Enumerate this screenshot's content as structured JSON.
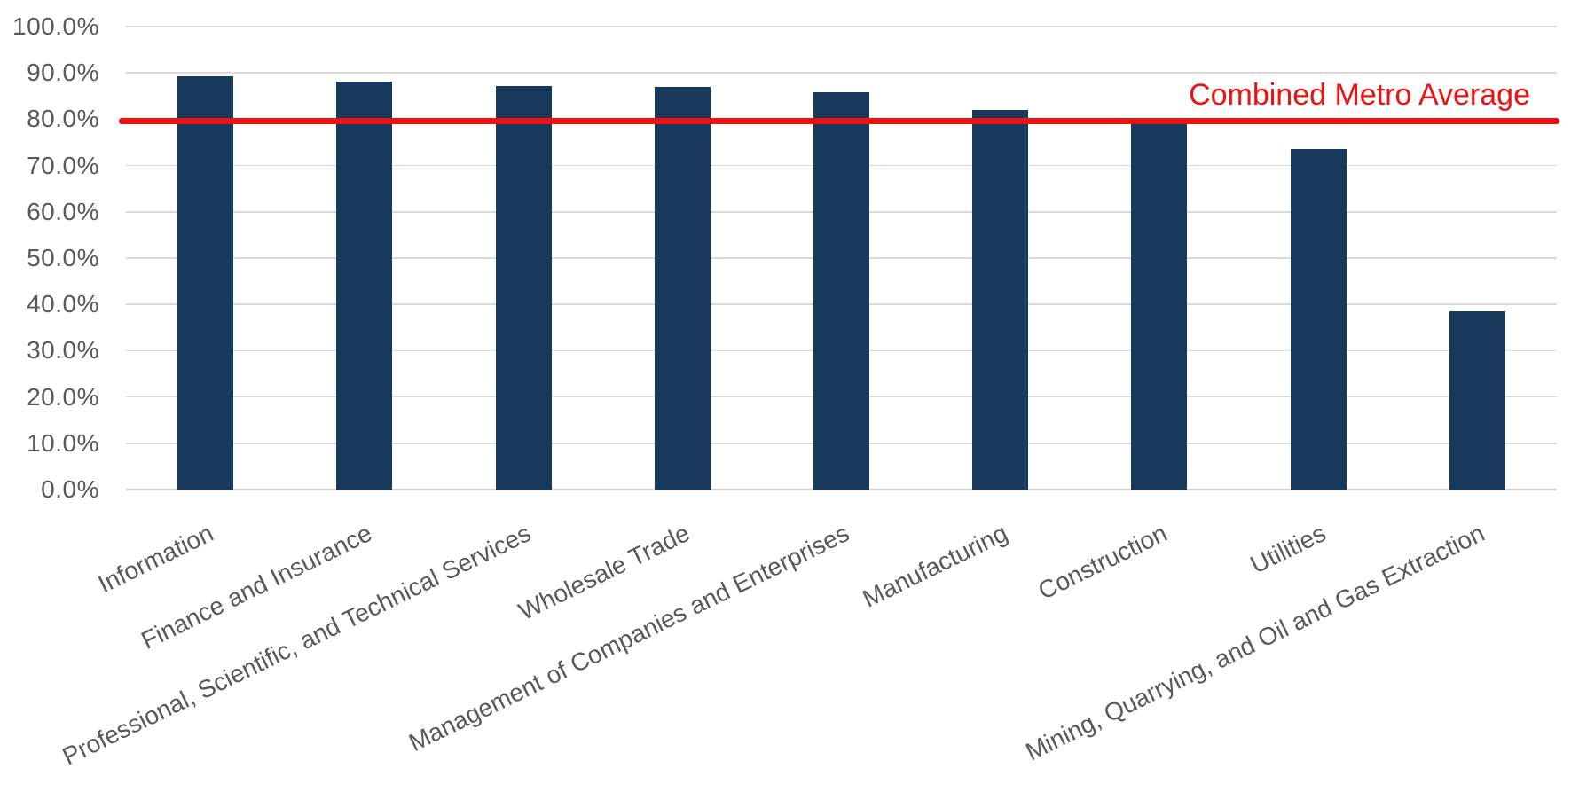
{
  "chart_data": {
    "type": "bar",
    "title": "",
    "xlabel": "",
    "ylabel": "",
    "categories": [
      "Information",
      "Finance and Insurance",
      "Professional, Scientific, and Technical Services",
      "Wholesale Trade",
      "Management of Companies and Enterprises",
      "Manufacturing",
      "Construction",
      "Utilities",
      "Mining, Quarrying, and Oil and Gas Extraction"
    ],
    "values": [
      89.2,
      88.1,
      87.1,
      86.9,
      85.9,
      82.0,
      78.9,
      73.6,
      38.6
    ],
    "value_unit": "percent",
    "ylim": [
      0,
      100
    ],
    "yticks": [
      0,
      10,
      20,
      30,
      40,
      50,
      60,
      70,
      80,
      90,
      100
    ],
    "ytick_labels": [
      "0.0%",
      "10.0%",
      "20.0%",
      "30.0%",
      "40.0%",
      "50.0%",
      "60.0%",
      "70.0%",
      "80.0%",
      "90.0%",
      "100.0%"
    ],
    "grid": "horizontal",
    "legend": "none",
    "reference_line": {
      "label": "Combined Metro Average",
      "value": 79.6,
      "color": "#ee1111"
    },
    "colors": {
      "bar": "#17395b",
      "gridline": "#d9d9d9",
      "axis_text": "#595959",
      "background": "#ffffff"
    }
  }
}
